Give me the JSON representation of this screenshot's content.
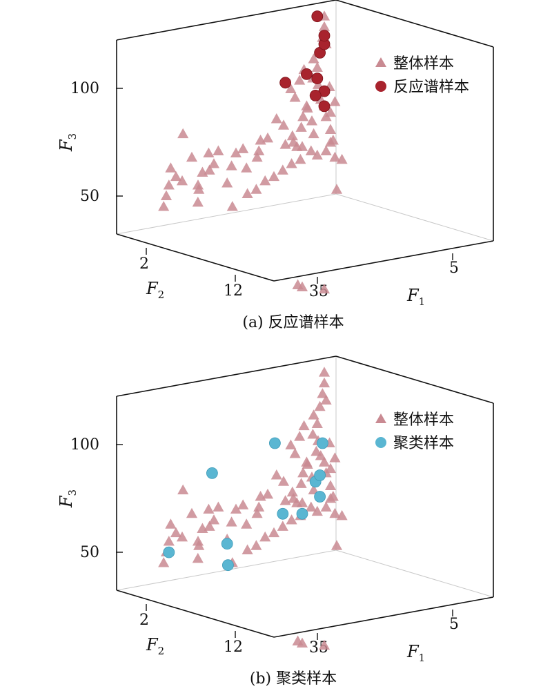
{
  "chart_data": [
    {
      "type": "scatter",
      "title": "",
      "caption": "(a) 反应谱样本",
      "xlabel": "F",
      "xlabel_sub": "1",
      "ylabel": "F",
      "ylabel_sub": "2",
      "zlabel": "F",
      "zlabel_sub": "3",
      "x_ticks": [
        "35",
        "5"
      ],
      "y_ticks": [
        "2",
        "12"
      ],
      "z_ticks": [
        "50",
        "100"
      ],
      "legend": [
        {
          "label": "整体样本",
          "marker": "triangle",
          "color": "#c98a92"
        },
        {
          "label": "反应谱样本",
          "marker": "circle",
          "color": "#a8232d"
        }
      ],
      "series": [
        {
          "name": "整体样本",
          "marker": "triangle",
          "color": "#c98a92",
          "points": [
            [
              2,
              1,
              49
            ],
            [
              2,
              2,
              54
            ],
            [
              2,
              0,
              44
            ],
            [
              3,
              4,
              58
            ],
            [
              3,
              2,
              62
            ],
            [
              4,
              6,
              78
            ],
            [
              5,
              5,
              56
            ],
            [
              6,
              8,
              67
            ],
            [
              5,
              11,
              46
            ],
            [
              7,
              10,
              52
            ],
            [
              8,
              9,
              54
            ],
            [
              9,
              10,
              60
            ],
            [
              10,
              12,
              61
            ],
            [
              11,
              11,
              69
            ],
            [
              11,
              13,
              64
            ],
            [
              12,
              14,
              70
            ],
            [
              14,
              16,
              55
            ],
            [
              15,
              17,
              63
            ],
            [
              16,
              18,
              69
            ],
            [
              17,
              20,
              71
            ],
            [
              19,
              24,
              67
            ],
            [
              20,
              24,
              70
            ],
            [
              22,
              26,
              76
            ],
            [
              24,
              28,
              85
            ],
            [
              25,
              30,
              82
            ],
            [
              26,
              30,
              73
            ],
            [
              27,
              32,
              77
            ],
            [
              28,
              33,
              72
            ],
            [
              29,
              34,
              81
            ],
            [
              30,
              34,
              86
            ],
            [
              31,
              35,
              90
            ],
            [
              32,
              36,
              84
            ],
            [
              33,
              37,
              96
            ],
            [
              34,
              37,
              101
            ],
            [
              29,
              30,
              99
            ],
            [
              31,
              32,
              103
            ],
            [
              32,
              33,
              108
            ],
            [
              34,
              35,
              104
            ],
            [
              35,
              36,
              109
            ],
            [
              33,
              36,
              113
            ],
            [
              35,
              37,
              117
            ],
            [
              35,
              38,
              123
            ],
            [
              36,
              38,
              128
            ],
            [
              36,
              38,
              133
            ],
            [
              37,
              38,
              120
            ],
            [
              34,
              38,
              94
            ],
            [
              36,
              38,
              91
            ],
            [
              37,
              38,
              86
            ],
            [
              32,
              34,
              91
            ],
            [
              30,
              33,
              66
            ],
            [
              28,
              31,
              64
            ],
            [
              26,
              29,
              61
            ],
            [
              24,
              27,
              58
            ],
            [
              22,
              25,
              56
            ],
            [
              20,
              23,
              52
            ],
            [
              18,
              21,
              50
            ],
            [
              14,
              18,
              44
            ],
            [
              38,
              39,
              88
            ],
            [
              38,
              39,
              80
            ],
            [
              38,
              39,
              74
            ],
            [
              37,
              38,
              70
            ],
            [
              35,
              36,
              68
            ],
            [
              33,
              35,
              70
            ],
            [
              31,
              33,
              72
            ],
            [
              29,
              31,
              74
            ],
            [
              38,
              40,
              75
            ],
            [
              39,
              40,
              67
            ],
            [
              39,
              40,
              93
            ],
            [
              40,
              42,
              66
            ],
            [
              30,
              32,
              30
            ],
            [
              31,
              33,
              29
            ],
            [
              36,
              38,
              28
            ],
            [
              40,
              40,
              52
            ],
            [
              16,
              22,
              62
            ],
            [
              18,
              26,
              75
            ],
            [
              27,
              33,
              95
            ],
            [
              36,
              40,
              100
            ],
            [
              33,
              36,
              78
            ]
          ]
        },
        {
          "name": "反应谱样本",
          "marker": "circle",
          "color": "#a8232d",
          "points": [
            [
              26,
              30,
              102
            ],
            [
              32,
              34,
              106
            ],
            [
              35,
              36,
              104
            ],
            [
              36,
              38,
              98
            ],
            [
              36,
              38,
              91
            ],
            [
              34,
              36,
              96
            ],
            [
              35,
              37,
              116
            ],
            [
              36,
              38,
              120
            ],
            [
              36,
              38,
              124
            ],
            [
              35,
              36,
              133
            ]
          ]
        }
      ]
    },
    {
      "type": "scatter",
      "title": "",
      "caption": "(b) 聚类样本",
      "xlabel": "F",
      "xlabel_sub": "1",
      "ylabel": "F",
      "ylabel_sub": "2",
      "zlabel": "F",
      "zlabel_sub": "3",
      "x_ticks": [
        "35",
        "5"
      ],
      "y_ticks": [
        "2",
        "12"
      ],
      "z_ticks": [
        "50",
        "100"
      ],
      "legend": [
        {
          "label": "整体样本",
          "marker": "triangle",
          "color": "#c98a92"
        },
        {
          "label": "聚类样本",
          "marker": "circle",
          "color": "#5ab6d2"
        }
      ],
      "series": [
        {
          "name": "整体样本",
          "marker": "triangle",
          "color": "#c98a92",
          "points": [
            [
              2,
              1,
              49
            ],
            [
              2,
              2,
              54
            ],
            [
              2,
              0,
              44
            ],
            [
              3,
              4,
              58
            ],
            [
              3,
              2,
              62
            ],
            [
              4,
              6,
              78
            ],
            [
              5,
              5,
              56
            ],
            [
              6,
              8,
              67
            ],
            [
              5,
              11,
              46
            ],
            [
              7,
              10,
              52
            ],
            [
              8,
              9,
              54
            ],
            [
              9,
              10,
              60
            ],
            [
              10,
              12,
              61
            ],
            [
              11,
              11,
              69
            ],
            [
              11,
              13,
              64
            ],
            [
              12,
              14,
              70
            ],
            [
              14,
              16,
              55
            ],
            [
              15,
              17,
              63
            ],
            [
              16,
              18,
              69
            ],
            [
              17,
              20,
              71
            ],
            [
              19,
              24,
              67
            ],
            [
              20,
              24,
              70
            ],
            [
              22,
              26,
              76
            ],
            [
              24,
              28,
              85
            ],
            [
              25,
              30,
              82
            ],
            [
              26,
              30,
              73
            ],
            [
              27,
              32,
              77
            ],
            [
              28,
              33,
              72
            ],
            [
              29,
              34,
              81
            ],
            [
              30,
              34,
              86
            ],
            [
              31,
              35,
              90
            ],
            [
              32,
              36,
              84
            ],
            [
              33,
              37,
              96
            ],
            [
              34,
              37,
              101
            ],
            [
              29,
              30,
              99
            ],
            [
              31,
              32,
              103
            ],
            [
              32,
              33,
              108
            ],
            [
              34,
              35,
              104
            ],
            [
              35,
              36,
              109
            ],
            [
              33,
              36,
              113
            ],
            [
              35,
              37,
              117
            ],
            [
              35,
              38,
              123
            ],
            [
              36,
              38,
              128
            ],
            [
              36,
              38,
              133
            ],
            [
              37,
              38,
              120
            ],
            [
              34,
              38,
              94
            ],
            [
              36,
              38,
              91
            ],
            [
              37,
              38,
              86
            ],
            [
              32,
              34,
              91
            ],
            [
              30,
              33,
              66
            ],
            [
              28,
              31,
              64
            ],
            [
              26,
              29,
              61
            ],
            [
              24,
              27,
              58
            ],
            [
              22,
              25,
              56
            ],
            [
              20,
              23,
              52
            ],
            [
              18,
              21,
              50
            ],
            [
              14,
              18,
              44
            ],
            [
              38,
              39,
              88
            ],
            [
              38,
              39,
              80
            ],
            [
              38,
              39,
              74
            ],
            [
              37,
              38,
              70
            ],
            [
              35,
              36,
              68
            ],
            [
              33,
              35,
              70
            ],
            [
              31,
              33,
              72
            ],
            [
              29,
              31,
              74
            ],
            [
              38,
              40,
              75
            ],
            [
              39,
              40,
              67
            ],
            [
              39,
              40,
              93
            ],
            [
              40,
              42,
              66
            ],
            [
              30,
              32,
              30
            ],
            [
              31,
              33,
              29
            ],
            [
              36,
              38,
              28
            ],
            [
              40,
              40,
              52
            ],
            [
              16,
              22,
              62
            ],
            [
              18,
              26,
              75
            ],
            [
              27,
              33,
              95
            ],
            [
              36,
              40,
              100
            ],
            [
              33,
              36,
              78
            ]
          ]
        },
        {
          "name": "聚类样本",
          "marker": "circle",
          "color": "#5ab6d2",
          "points": [
            [
              2,
              2,
              49
            ],
            [
              14,
              16,
              53
            ],
            [
              13,
              17,
              43
            ],
            [
              10,
              13,
              86
            ],
            [
              26,
              26,
              100
            ],
            [
              35,
              38,
              100
            ],
            [
              34,
              36,
              82
            ],
            [
              35,
              37,
              75
            ],
            [
              35,
              37,
              85
            ],
            [
              26,
              29,
              67
            ],
            [
              31,
              33,
              67
            ]
          ]
        }
      ]
    }
  ]
}
